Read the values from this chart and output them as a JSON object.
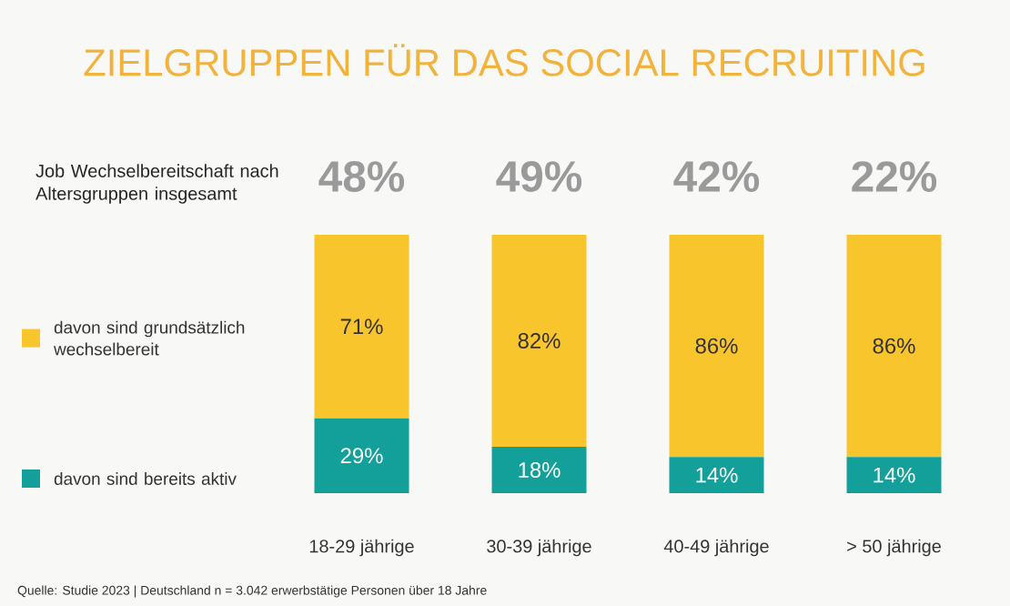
{
  "chart_data": {
    "type": "bar",
    "title": "ZIELGRUPPEN FÜR DAS SOCIAL RECRUITING",
    "stacked": true,
    "legend": "left",
    "categories": [
      "18-29 jährige",
      "30-39 jährige",
      "40-49 jährige",
      "> 50 jährige"
    ],
    "series": [
      {
        "name": "davon sind bereits aktiv",
        "color": "#14a09a",
        "values": [
          29,
          18,
          14,
          14
        ],
        "value_labels": [
          "29%",
          "18%",
          "14%",
          "14%"
        ]
      },
      {
        "name": "davon sind grundsätzlich wechselbereit",
        "color": "#f8c52c",
        "values": [
          71,
          82,
          86,
          86
        ],
        "value_labels": [
          "71%",
          "82%",
          "86%",
          "86%"
        ]
      }
    ],
    "annotations": [
      "Job Wechselbereitschaft nach Altersgruppen insgesamt",
      "48%",
      "49%",
      "42%",
      "22%",
      "Quelle: Studie 2023 | Deutschland n = 3.042 erwerbstätige Personen über 18 Jahre"
    ]
  }
}
